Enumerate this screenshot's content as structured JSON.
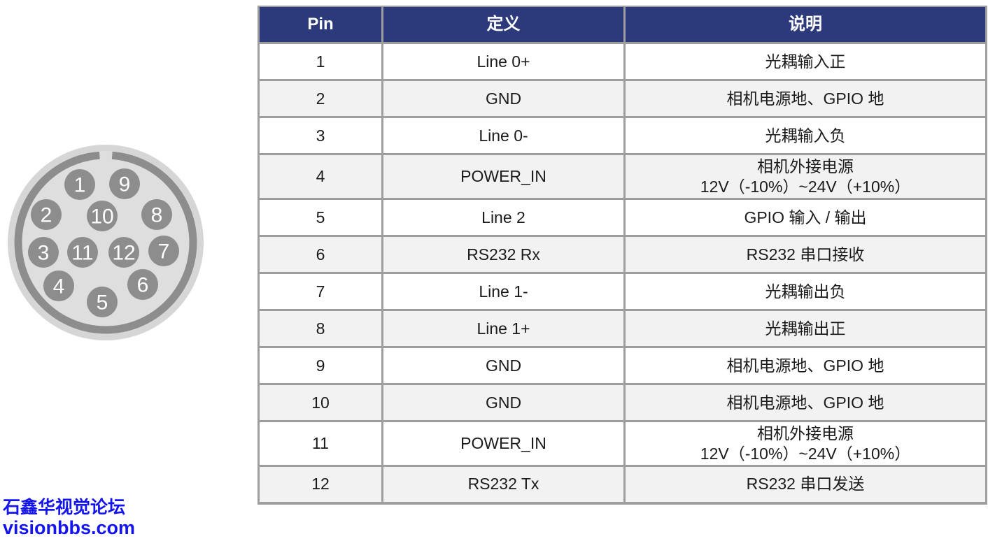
{
  "connector": {
    "title": "12-pin circular connector face view",
    "pins": [
      "1",
      "2",
      "3",
      "4",
      "5",
      "6",
      "7",
      "8",
      "9",
      "10",
      "11",
      "12"
    ],
    "colors": {
      "outer_rim": "#d6d6d6",
      "inner_face": "#dedede",
      "ring": "#8d8d8d",
      "pin_fill": "#8d8d8d",
      "pin_number": "#ffffff"
    }
  },
  "table": {
    "headers": [
      "Pin",
      "定义",
      "说明"
    ],
    "rows": [
      {
        "pin": "1",
        "definition": "Line 0+",
        "description": [
          "光耦输入正"
        ]
      },
      {
        "pin": "2",
        "definition": "GND",
        "description": [
          "相机电源地、GPIO 地"
        ]
      },
      {
        "pin": "3",
        "definition": "Line 0-",
        "description": [
          "光耦输入负"
        ]
      },
      {
        "pin": "4",
        "definition": "POWER_IN",
        "description": [
          "相机外接电源",
          "12V（-10%）~24V（+10%）"
        ]
      },
      {
        "pin": "5",
        "definition": "Line 2",
        "description": [
          "GPIO 输入 / 输出"
        ]
      },
      {
        "pin": "6",
        "definition": "RS232 Rx",
        "description": [
          "RS232 串口接收"
        ]
      },
      {
        "pin": "7",
        "definition": "Line 1-",
        "description": [
          "光耦输出负"
        ]
      },
      {
        "pin": "8",
        "definition": "Line 1+",
        "description": [
          "光耦输出正"
        ]
      },
      {
        "pin": "9",
        "definition": "GND",
        "description": [
          "相机电源地、GPIO 地"
        ]
      },
      {
        "pin": "10",
        "definition": "GND",
        "description": [
          "相机电源地、GPIO 地"
        ]
      },
      {
        "pin": "11",
        "definition": "POWER_IN",
        "description": [
          "相机外接电源",
          "12V（-10%）~24V（+10%）"
        ]
      },
      {
        "pin": "12",
        "definition": "RS232 Tx",
        "description": [
          "RS232 串口发送"
        ]
      }
    ],
    "colors": {
      "header_bg": "#2c3a7c",
      "header_text": "#ffffff",
      "grid": "#9e9e9e",
      "row_alt_bg": "#f2f2f2",
      "body_text": "#1b1b1b"
    }
  },
  "watermark": {
    "line1": "石鑫华视觉论坛",
    "line2": "visionbbs.com",
    "color": "#1414ee"
  }
}
